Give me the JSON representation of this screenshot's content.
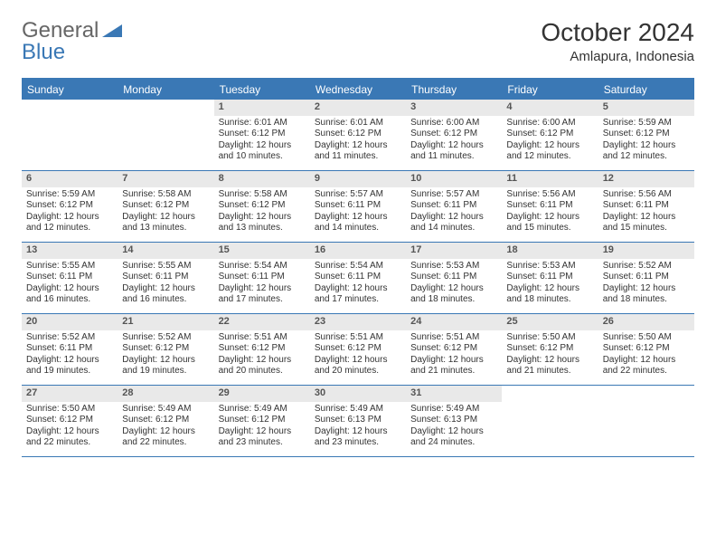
{
  "logo": {
    "part1": "General",
    "part2": "Blue",
    "icon_color": "#3a78b5"
  },
  "title": "October 2024",
  "location": "Amlapura, Indonesia",
  "colors": {
    "header_bg": "#3a78b5",
    "header_text": "#ffffff",
    "daynum_bg": "#e9e9e9",
    "border": "#3a78b5",
    "text": "#333333"
  },
  "day_names": [
    "Sunday",
    "Monday",
    "Tuesday",
    "Wednesday",
    "Thursday",
    "Friday",
    "Saturday"
  ],
  "weeks": [
    [
      {
        "n": "",
        "sr": "",
        "ss": "",
        "dl": ""
      },
      {
        "n": "",
        "sr": "",
        "ss": "",
        "dl": ""
      },
      {
        "n": "1",
        "sr": "Sunrise: 6:01 AM",
        "ss": "Sunset: 6:12 PM",
        "dl": "Daylight: 12 hours and 10 minutes."
      },
      {
        "n": "2",
        "sr": "Sunrise: 6:01 AM",
        "ss": "Sunset: 6:12 PM",
        "dl": "Daylight: 12 hours and 11 minutes."
      },
      {
        "n": "3",
        "sr": "Sunrise: 6:00 AM",
        "ss": "Sunset: 6:12 PM",
        "dl": "Daylight: 12 hours and 11 minutes."
      },
      {
        "n": "4",
        "sr": "Sunrise: 6:00 AM",
        "ss": "Sunset: 6:12 PM",
        "dl": "Daylight: 12 hours and 12 minutes."
      },
      {
        "n": "5",
        "sr": "Sunrise: 5:59 AM",
        "ss": "Sunset: 6:12 PM",
        "dl": "Daylight: 12 hours and 12 minutes."
      }
    ],
    [
      {
        "n": "6",
        "sr": "Sunrise: 5:59 AM",
        "ss": "Sunset: 6:12 PM",
        "dl": "Daylight: 12 hours and 12 minutes."
      },
      {
        "n": "7",
        "sr": "Sunrise: 5:58 AM",
        "ss": "Sunset: 6:12 PM",
        "dl": "Daylight: 12 hours and 13 minutes."
      },
      {
        "n": "8",
        "sr": "Sunrise: 5:58 AM",
        "ss": "Sunset: 6:12 PM",
        "dl": "Daylight: 12 hours and 13 minutes."
      },
      {
        "n": "9",
        "sr": "Sunrise: 5:57 AM",
        "ss": "Sunset: 6:11 PM",
        "dl": "Daylight: 12 hours and 14 minutes."
      },
      {
        "n": "10",
        "sr": "Sunrise: 5:57 AM",
        "ss": "Sunset: 6:11 PM",
        "dl": "Daylight: 12 hours and 14 minutes."
      },
      {
        "n": "11",
        "sr": "Sunrise: 5:56 AM",
        "ss": "Sunset: 6:11 PM",
        "dl": "Daylight: 12 hours and 15 minutes."
      },
      {
        "n": "12",
        "sr": "Sunrise: 5:56 AM",
        "ss": "Sunset: 6:11 PM",
        "dl": "Daylight: 12 hours and 15 minutes."
      }
    ],
    [
      {
        "n": "13",
        "sr": "Sunrise: 5:55 AM",
        "ss": "Sunset: 6:11 PM",
        "dl": "Daylight: 12 hours and 16 minutes."
      },
      {
        "n": "14",
        "sr": "Sunrise: 5:55 AM",
        "ss": "Sunset: 6:11 PM",
        "dl": "Daylight: 12 hours and 16 minutes."
      },
      {
        "n": "15",
        "sr": "Sunrise: 5:54 AM",
        "ss": "Sunset: 6:11 PM",
        "dl": "Daylight: 12 hours and 17 minutes."
      },
      {
        "n": "16",
        "sr": "Sunrise: 5:54 AM",
        "ss": "Sunset: 6:11 PM",
        "dl": "Daylight: 12 hours and 17 minutes."
      },
      {
        "n": "17",
        "sr": "Sunrise: 5:53 AM",
        "ss": "Sunset: 6:11 PM",
        "dl": "Daylight: 12 hours and 18 minutes."
      },
      {
        "n": "18",
        "sr": "Sunrise: 5:53 AM",
        "ss": "Sunset: 6:11 PM",
        "dl": "Daylight: 12 hours and 18 minutes."
      },
      {
        "n": "19",
        "sr": "Sunrise: 5:52 AM",
        "ss": "Sunset: 6:11 PM",
        "dl": "Daylight: 12 hours and 18 minutes."
      }
    ],
    [
      {
        "n": "20",
        "sr": "Sunrise: 5:52 AM",
        "ss": "Sunset: 6:11 PM",
        "dl": "Daylight: 12 hours and 19 minutes."
      },
      {
        "n": "21",
        "sr": "Sunrise: 5:52 AM",
        "ss": "Sunset: 6:12 PM",
        "dl": "Daylight: 12 hours and 19 minutes."
      },
      {
        "n": "22",
        "sr": "Sunrise: 5:51 AM",
        "ss": "Sunset: 6:12 PM",
        "dl": "Daylight: 12 hours and 20 minutes."
      },
      {
        "n": "23",
        "sr": "Sunrise: 5:51 AM",
        "ss": "Sunset: 6:12 PM",
        "dl": "Daylight: 12 hours and 20 minutes."
      },
      {
        "n": "24",
        "sr": "Sunrise: 5:51 AM",
        "ss": "Sunset: 6:12 PM",
        "dl": "Daylight: 12 hours and 21 minutes."
      },
      {
        "n": "25",
        "sr": "Sunrise: 5:50 AM",
        "ss": "Sunset: 6:12 PM",
        "dl": "Daylight: 12 hours and 21 minutes."
      },
      {
        "n": "26",
        "sr": "Sunrise: 5:50 AM",
        "ss": "Sunset: 6:12 PM",
        "dl": "Daylight: 12 hours and 22 minutes."
      }
    ],
    [
      {
        "n": "27",
        "sr": "Sunrise: 5:50 AM",
        "ss": "Sunset: 6:12 PM",
        "dl": "Daylight: 12 hours and 22 minutes."
      },
      {
        "n": "28",
        "sr": "Sunrise: 5:49 AM",
        "ss": "Sunset: 6:12 PM",
        "dl": "Daylight: 12 hours and 22 minutes."
      },
      {
        "n": "29",
        "sr": "Sunrise: 5:49 AM",
        "ss": "Sunset: 6:12 PM",
        "dl": "Daylight: 12 hours and 23 minutes."
      },
      {
        "n": "30",
        "sr": "Sunrise: 5:49 AM",
        "ss": "Sunset: 6:13 PM",
        "dl": "Daylight: 12 hours and 23 minutes."
      },
      {
        "n": "31",
        "sr": "Sunrise: 5:49 AM",
        "ss": "Sunset: 6:13 PM",
        "dl": "Daylight: 12 hours and 24 minutes."
      },
      {
        "n": "",
        "sr": "",
        "ss": "",
        "dl": ""
      },
      {
        "n": "",
        "sr": "",
        "ss": "",
        "dl": ""
      }
    ]
  ]
}
